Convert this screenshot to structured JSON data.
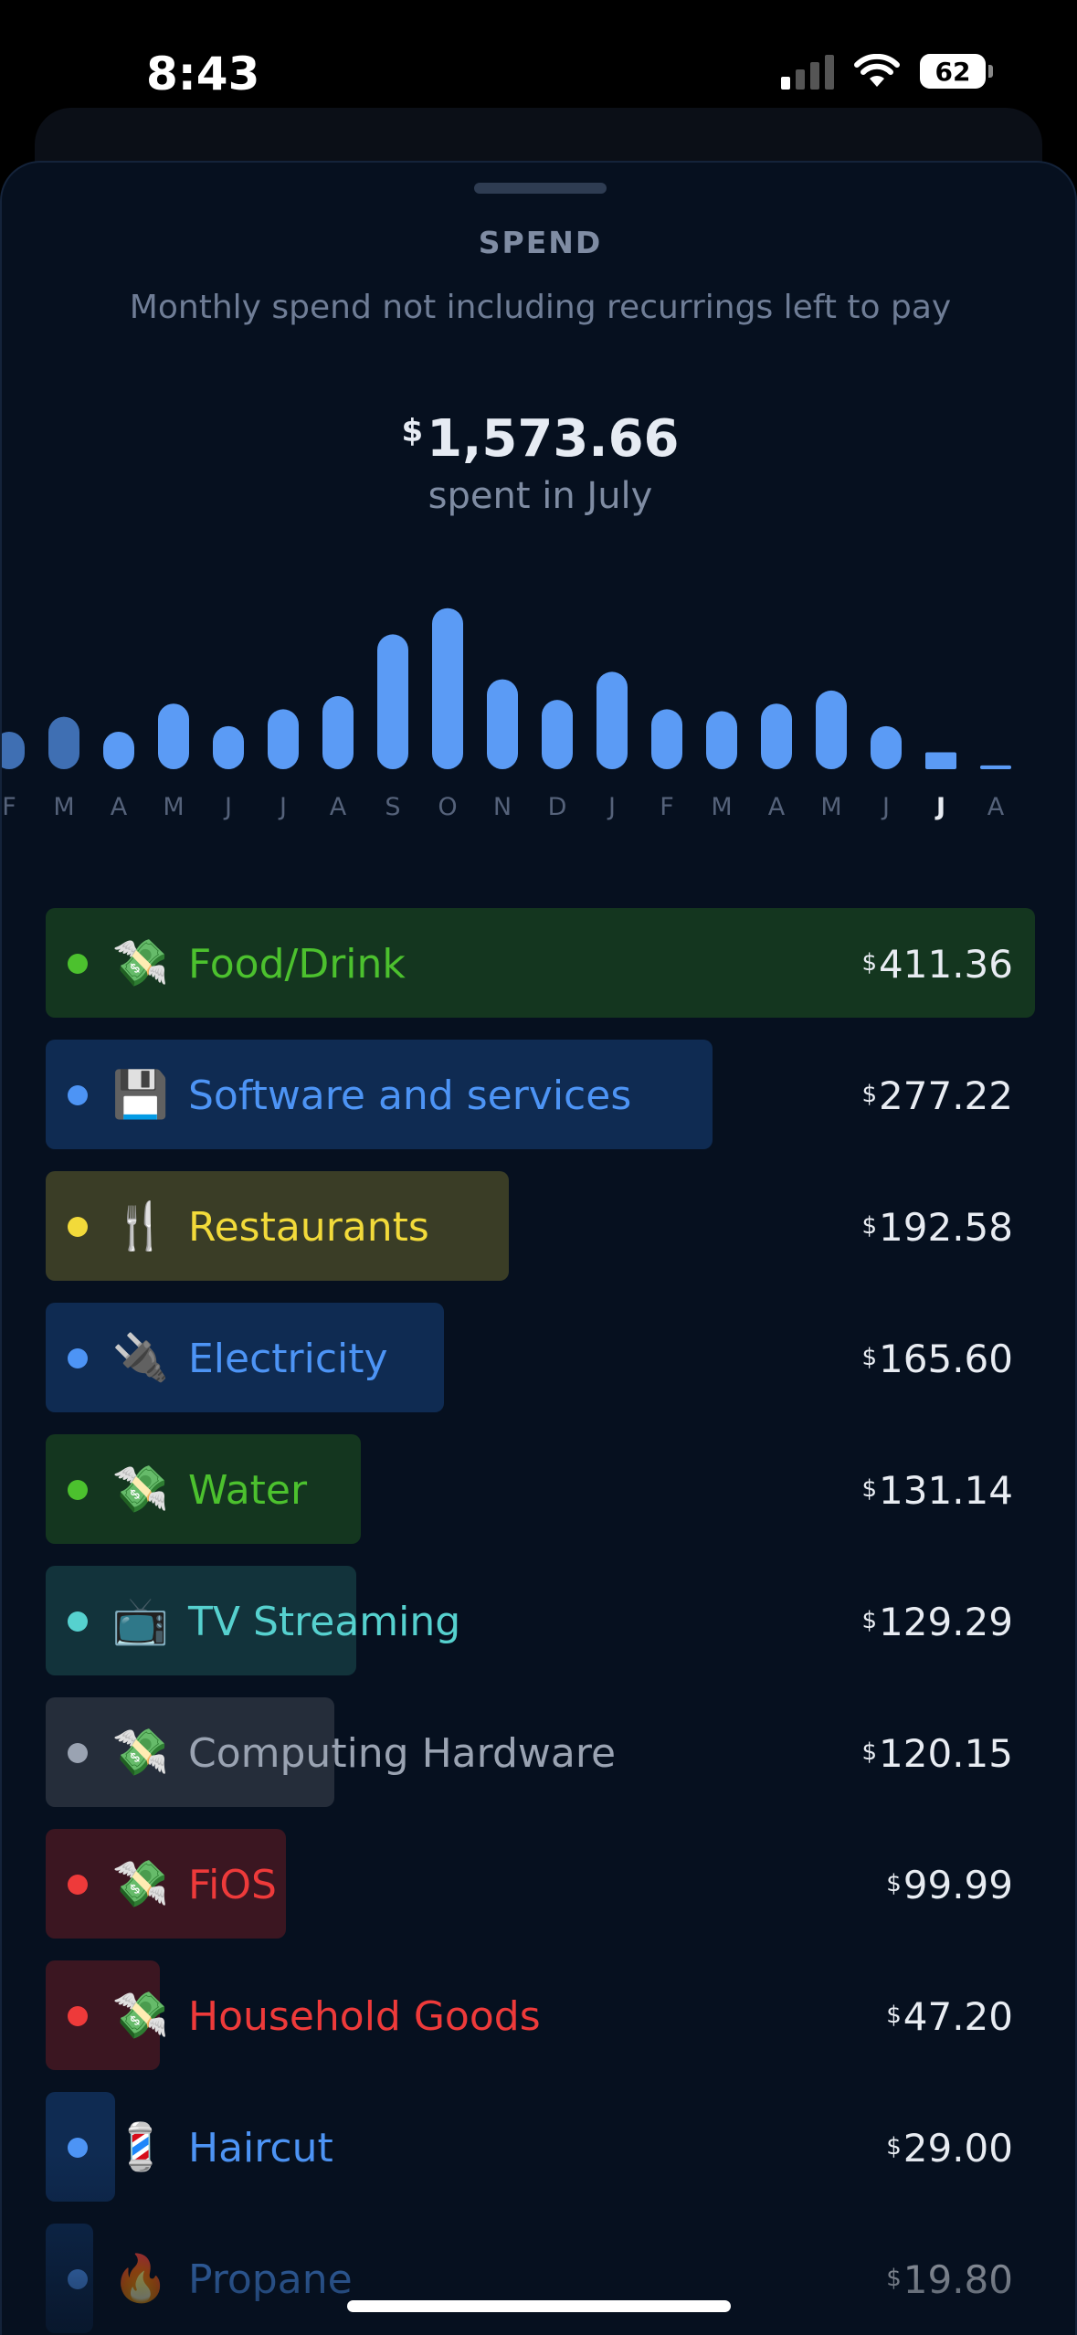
{
  "status_bar": {
    "time": "8:43",
    "battery": "62"
  },
  "sheet": {
    "title": "SPEND",
    "subtitle": "Monthly spend not including recurrings left to pay",
    "total_currency": "$",
    "total_amount": "1,573.66",
    "total_caption": "spent in July"
  },
  "colors": {
    "bar": "#5b9bf5",
    "bar_dim": "#3f6fb3",
    "label_dim": "#55627a",
    "label_active": "#e8ecf2"
  },
  "chart_data": {
    "type": "bar",
    "categories": [
      "F",
      "M",
      "A",
      "M",
      "J",
      "J",
      "A",
      "S",
      "O",
      "N",
      "D",
      "J",
      "F",
      "M",
      "A",
      "M",
      "J",
      "J",
      "A"
    ],
    "values": [
      0.2,
      0.28,
      0.2,
      0.35,
      0.23,
      0.32,
      0.39,
      0.72,
      0.86,
      0.48,
      0.37,
      0.52,
      0.32,
      0.31,
      0.35,
      0.42,
      0.23,
      0.09,
      0.02
    ],
    "selected_index": 17,
    "title": "",
    "xlabel": "",
    "ylabel": ""
  },
  "categories": [
    {
      "icon": "money-with-wings-icon",
      "emoji": "💸",
      "label": "Food/Drink",
      "amount": "411.36",
      "color": "#4cc12e",
      "bg": "#14361f",
      "fraction": 1.0
    },
    {
      "icon": "floppy-disk-icon",
      "emoji": "💾",
      "label": "Software and services",
      "amount": "277.22",
      "color": "#4d94f5",
      "bg": "#0f2b52",
      "fraction": 0.674
    },
    {
      "icon": "fork-and-knife-icon",
      "emoji": "🍴",
      "label": "Restaurants",
      "amount": "192.58",
      "color": "#f2da3a",
      "bg": "#3a3d26",
      "fraction": 0.468
    },
    {
      "icon": "electric-plug-icon",
      "emoji": "🔌",
      "label": "Electricity",
      "amount": "165.60",
      "color": "#4d94f5",
      "bg": "#0f2b52",
      "fraction": 0.403
    },
    {
      "icon": "money-with-wings-icon",
      "emoji": "💸",
      "label": "Water",
      "amount": "131.14",
      "color": "#4cc12e",
      "bg": "#14361f",
      "fraction": 0.319
    },
    {
      "icon": "television-icon",
      "emoji": "📺",
      "label": "TV Streaming",
      "amount": "129.29",
      "color": "#56d1cf",
      "bg": "#12333b",
      "fraction": 0.314
    },
    {
      "icon": "money-with-wings-icon",
      "emoji": "💸",
      "label": "Computing Hardware",
      "amount": "120.15",
      "color": "#9aa3b2",
      "bg": "#252d3a",
      "fraction": 0.292
    },
    {
      "icon": "money-with-wings-icon",
      "emoji": "💸",
      "label": "FiOS",
      "amount": "99.99",
      "color": "#ee3a3a",
      "bg": "#3b1621",
      "fraction": 0.243
    },
    {
      "icon": "money-with-wings-icon",
      "emoji": "💸",
      "label": "Household Goods",
      "amount": "47.20",
      "color": "#ee3a3a",
      "bg": "#3b1621",
      "fraction": 0.115
    },
    {
      "icon": "barber-pole-icon",
      "emoji": "💈",
      "label": "Haircut",
      "amount": "29.00",
      "color": "#4d94f5",
      "bg": "#0f2b52",
      "fraction": 0.07
    },
    {
      "icon": "fire-icon",
      "emoji": "🔥",
      "label": "Propane",
      "amount": "19.80",
      "color": "#4d94f5",
      "bg": "#0f2b52",
      "fraction": 0.048
    }
  ],
  "currency_symbol": "$"
}
